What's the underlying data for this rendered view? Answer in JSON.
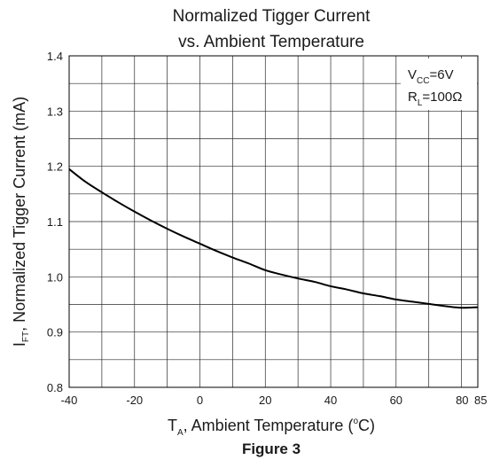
{
  "chart_data": {
    "type": "line",
    "title_line1": "Normalized Tigger Current",
    "title_line2": "vs. Ambient Temperature",
    "ylabel_symbol": "I",
    "ylabel_sub": "FT",
    "ylabel_rest": ", Normalized Tigger Current (mA)",
    "xlabel_symbol": "T",
    "xlabel_sub": "A",
    "xlabel_rest": ", Ambient Temperature (",
    "xlabel_degree": "o",
    "xlabel_end": "C)",
    "caption": "Figure 3",
    "xlim": [
      -40,
      85
    ],
    "ylim": [
      0.8,
      1.4
    ],
    "x_major_ticks": [
      -40,
      -20,
      0,
      20,
      40,
      60,
      80
    ],
    "x_tick_labels": [
      "-40",
      "-20",
      "0",
      "20",
      "40",
      "60",
      "80",
      "85"
    ],
    "x_tick_label_values": [
      -40,
      -20,
      0,
      20,
      40,
      60,
      80,
      85
    ],
    "x_minor_grid": [
      -30,
      -10,
      10,
      30,
      50,
      70
    ],
    "y_major_ticks": [
      0.8,
      0.9,
      1.0,
      1.1,
      1.2,
      1.3,
      1.4
    ],
    "y_tick_labels": [
      "0.8",
      "0.9",
      "1.0",
      "1.1",
      "1.2",
      "1.3",
      "1.4"
    ],
    "y_minor_grid": [
      0.85,
      0.95,
      1.05,
      1.15,
      1.25,
      1.35
    ],
    "grid": true,
    "conditions": {
      "vcc_symbol": "V",
      "vcc_sub": "CC",
      "vcc_value": "=6V",
      "rl_symbol": "R",
      "rl_sub": "L",
      "rl_value": "=100Ω"
    },
    "series": [
      {
        "x": [
          -40,
          -35,
          -30,
          -25,
          -20,
          -15,
          -10,
          -5,
          0,
          5,
          10,
          15,
          20,
          25,
          30,
          35,
          40,
          45,
          50,
          55,
          60,
          65,
          70,
          75,
          80,
          85
        ],
        "y": [
          1.195,
          1.172,
          1.153,
          1.135,
          1.118,
          1.102,
          1.087,
          1.073,
          1.06,
          1.047,
          1.035,
          1.024,
          1.012,
          1.004,
          0.997,
          0.991,
          0.983,
          0.977,
          0.97,
          0.965,
          0.959,
          0.955,
          0.951,
          0.947,
          0.944,
          0.945
        ]
      }
    ]
  }
}
